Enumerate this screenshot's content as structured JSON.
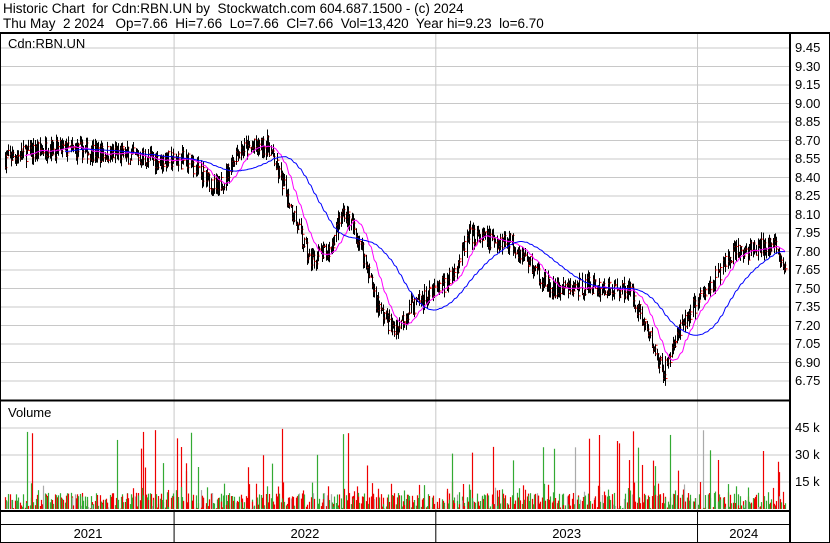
{
  "header": {
    "title": "Historic Chart  for Cdn:RBN.UN by  Stockwatch.com 604.687.1500 - (c) 2024",
    "quote": "Thu May  2 2024   Op=7.66  Hi=7.66  Lo=7.66  Cl=7.66  Vol=13,420  Year hi=9.23  lo=6.70"
  },
  "chart_data": {
    "type": "line",
    "symbol": "Cdn:RBN.UN",
    "volume_label": "Volume",
    "price_ticks": [
      "9.45",
      "9.30",
      "9.15",
      "9.00",
      "8.85",
      "8.70",
      "8.55",
      "8.40",
      "8.25",
      "8.10",
      "7.95",
      "7.80",
      "7.65",
      "7.50",
      "7.35",
      "7.20",
      "7.05",
      "6.90",
      "6.75"
    ],
    "ylim": [
      6.75,
      9.45
    ],
    "volume_ticks": [
      "45 k",
      "30 k",
      "15 k"
    ],
    "volume_tick_values": [
      45000,
      30000,
      15000
    ],
    "year_labels": [
      "2021",
      "2022",
      "2023",
      "2024"
    ],
    "year_starts": [
      "2021-05-06",
      "2022-01-01",
      "2023-01-01",
      "2024-01-01"
    ],
    "date_range": [
      "2021-05-06",
      "2024-05-02"
    ],
    "grid": true,
    "colors": {
      "price": "#000000",
      "close_tick": "#ff0000",
      "ma_short": "#ff00ff",
      "ma_long": "#0000ff",
      "vol_up": "#33aa33",
      "vol_down": "#ee0000",
      "vol_flat": "#aaaaaa"
    },
    "close_path": [
      [
        "2021-05-10",
        8.55
      ],
      [
        "2021-07-07",
        8.64
      ],
      [
        "2021-09-02",
        8.61
      ],
      [
        "2021-10-28",
        8.58
      ],
      [
        "2021-12-09",
        8.54
      ],
      [
        "2022-01-20",
        8.54
      ],
      [
        "2022-03-03",
        8.3
      ],
      [
        "2022-03-31",
        8.62
      ],
      [
        "2022-05-12",
        8.66
      ],
      [
        "2022-06-09",
        8.22
      ],
      [
        "2022-07-08",
        7.73
      ],
      [
        "2022-08-05",
        7.81
      ],
      [
        "2022-08-26",
        8.14
      ],
      [
        "2022-09-16",
        7.89
      ],
      [
        "2022-10-14",
        7.33
      ],
      [
        "2022-11-04",
        7.16
      ],
      [
        "2022-11-25",
        7.33
      ],
      [
        "2022-12-23",
        7.45
      ],
      [
        "2023-01-20",
        7.57
      ],
      [
        "2023-02-17",
        7.93
      ],
      [
        "2023-03-17",
        7.89
      ],
      [
        "2023-04-14",
        7.89
      ],
      [
        "2023-05-13",
        7.69
      ],
      [
        "2023-06-10",
        7.49
      ],
      [
        "2023-07-08",
        7.49
      ],
      [
        "2023-08-05",
        7.53
      ],
      [
        "2023-09-02",
        7.49
      ],
      [
        "2023-09-30",
        7.49
      ],
      [
        "2023-10-28",
        7.08
      ],
      [
        "2023-11-14",
        6.8
      ],
      [
        "2023-11-28",
        7.04
      ],
      [
        "2023-12-23",
        7.33
      ],
      [
        "2024-01-20",
        7.53
      ],
      [
        "2024-02-17",
        7.77
      ],
      [
        "2024-03-17",
        7.81
      ],
      [
        "2024-04-10",
        7.85
      ],
      [
        "2024-04-22",
        7.81
      ],
      [
        "2024-05-02",
        7.66
      ]
    ],
    "year_high": 9.23,
    "year_low": 6.7,
    "last": {
      "open": 7.66,
      "high": 7.66,
      "low": 7.66,
      "close": 7.66,
      "volume": 13420
    }
  }
}
